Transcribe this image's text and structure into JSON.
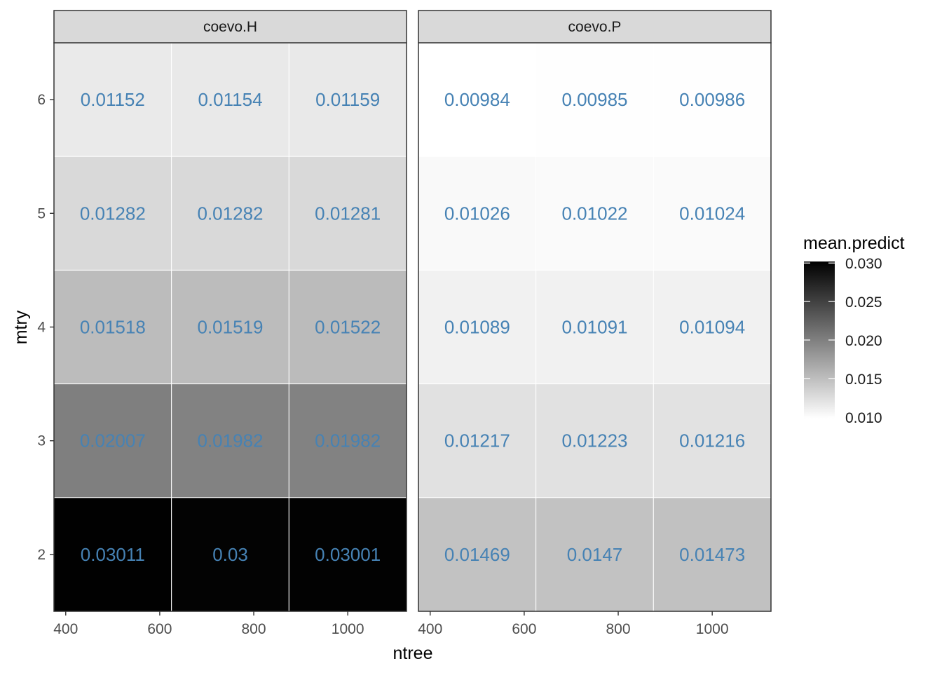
{
  "chart_data": {
    "type": "heatmap",
    "xlabel": "ntree",
    "ylabel": "mtry",
    "x_categories": [
      500,
      750,
      1000
    ],
    "x_ticks": [
      400,
      600,
      800,
      1000
    ],
    "xlim": [
      375,
      1125
    ],
    "y_categories": [
      2,
      3,
      4,
      5,
      6
    ],
    "y_ticks": [
      2,
      3,
      4,
      5,
      6
    ],
    "ylim": [
      1.5,
      6.5
    ],
    "grid": true,
    "label_color": "#4682b4",
    "fill_scale": {
      "low_color": "#ffffff",
      "high_color": "#000000",
      "min": 0.0098,
      "max": 0.0302
    },
    "legend": {
      "title": "mean.predict",
      "position": "right",
      "breaks": [
        0.03,
        0.025,
        0.02,
        0.015,
        0.01
      ],
      "break_labels": [
        "0.030",
        "0.025",
        "0.020",
        "0.015",
        "0.010"
      ]
    },
    "panels": [
      {
        "name": "coevo.H",
        "cells": [
          {
            "ntree": 500,
            "mtry": 6,
            "value": 0.01152,
            "label": "0.01152"
          },
          {
            "ntree": 750,
            "mtry": 6,
            "value": 0.01154,
            "label": "0.01154"
          },
          {
            "ntree": 1000,
            "mtry": 6,
            "value": 0.01159,
            "label": "0.01159"
          },
          {
            "ntree": 500,
            "mtry": 5,
            "value": 0.01282,
            "label": "0.01282"
          },
          {
            "ntree": 750,
            "mtry": 5,
            "value": 0.01282,
            "label": "0.01282"
          },
          {
            "ntree": 1000,
            "mtry": 5,
            "value": 0.01281,
            "label": "0.01281"
          },
          {
            "ntree": 500,
            "mtry": 4,
            "value": 0.01518,
            "label": "0.01518"
          },
          {
            "ntree": 750,
            "mtry": 4,
            "value": 0.01519,
            "label": "0.01519"
          },
          {
            "ntree": 1000,
            "mtry": 4,
            "value": 0.01522,
            "label": "0.01522"
          },
          {
            "ntree": 500,
            "mtry": 3,
            "value": 0.02007,
            "label": "0.02007"
          },
          {
            "ntree": 750,
            "mtry": 3,
            "value": 0.01982,
            "label": "0.01982"
          },
          {
            "ntree": 1000,
            "mtry": 3,
            "value": 0.01982,
            "label": "0.01982"
          },
          {
            "ntree": 500,
            "mtry": 2,
            "value": 0.03011,
            "label": "0.03011"
          },
          {
            "ntree": 750,
            "mtry": 2,
            "value": 0.03,
            "label": "0.03"
          },
          {
            "ntree": 1000,
            "mtry": 2,
            "value": 0.03001,
            "label": "0.03001"
          }
        ]
      },
      {
        "name": "coevo.P",
        "cells": [
          {
            "ntree": 500,
            "mtry": 6,
            "value": 0.00984,
            "label": "0.00984"
          },
          {
            "ntree": 750,
            "mtry": 6,
            "value": 0.00985,
            "label": "0.00985"
          },
          {
            "ntree": 1000,
            "mtry": 6,
            "value": 0.00986,
            "label": "0.00986"
          },
          {
            "ntree": 500,
            "mtry": 5,
            "value": 0.01026,
            "label": "0.01026"
          },
          {
            "ntree": 750,
            "mtry": 5,
            "value": 0.01022,
            "label": "0.01022"
          },
          {
            "ntree": 1000,
            "mtry": 5,
            "value": 0.01024,
            "label": "0.01024"
          },
          {
            "ntree": 500,
            "mtry": 4,
            "value": 0.01089,
            "label": "0.01089"
          },
          {
            "ntree": 750,
            "mtry": 4,
            "value": 0.01091,
            "label": "0.01091"
          },
          {
            "ntree": 1000,
            "mtry": 4,
            "value": 0.01094,
            "label": "0.01094"
          },
          {
            "ntree": 500,
            "mtry": 3,
            "value": 0.01217,
            "label": "0.01217"
          },
          {
            "ntree": 750,
            "mtry": 3,
            "value": 0.01223,
            "label": "0.01223"
          },
          {
            "ntree": 1000,
            "mtry": 3,
            "value": 0.01216,
            "label": "0.01216"
          },
          {
            "ntree": 500,
            "mtry": 2,
            "value": 0.01469,
            "label": "0.01469"
          },
          {
            "ntree": 750,
            "mtry": 2,
            "value": 0.0147,
            "label": "0.0147"
          },
          {
            "ntree": 1000,
            "mtry": 2,
            "value": 0.01473,
            "label": "0.01473"
          }
        ]
      }
    ]
  }
}
